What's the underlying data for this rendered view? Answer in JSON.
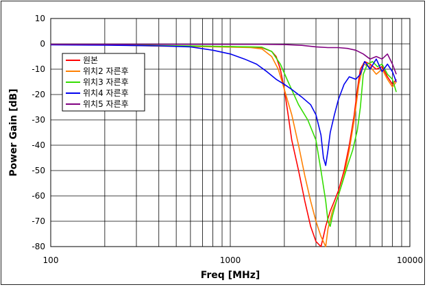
{
  "chart_data": {
    "type": "line",
    "title": "",
    "xlabel": "Freq [MHz]",
    "ylabel": "Power Gain [dB]",
    "xscale": "log",
    "xlim": [
      100,
      10000
    ],
    "ylim": [
      -80,
      10
    ],
    "x_ticks": [
      100,
      1000,
      10000
    ],
    "x_tick_labels": [
      "100",
      "1000",
      "10000"
    ],
    "y_ticks": [
      10,
      0,
      -10,
      -20,
      -30,
      -40,
      -50,
      -60,
      -70,
      -80
    ],
    "y_tick_labels": [
      "10",
      "0",
      "-10",
      "-20",
      "-30",
      "-40",
      "-50",
      "-60",
      "-70",
      "-80"
    ],
    "grid": true,
    "legend_position": "upper-left",
    "series": [
      {
        "name": "원본",
        "color": "#ff0000",
        "points": [
          [
            100,
            -0.3
          ],
          [
            200,
            -0.4
          ],
          [
            400,
            -0.8
          ],
          [
            700,
            -1.0
          ],
          [
            1000,
            -1.1
          ],
          [
            1300,
            -1.3
          ],
          [
            1500,
            -1.5
          ],
          [
            1700,
            -3
          ],
          [
            1800,
            -5
          ],
          [
            1900,
            -10
          ],
          [
            2000,
            -18
          ],
          [
            2100,
            -28
          ],
          [
            2200,
            -38
          ],
          [
            2400,
            -50
          ],
          [
            2600,
            -62
          ],
          [
            2800,
            -72
          ],
          [
            3000,
            -78
          ],
          [
            3200,
            -80
          ],
          [
            3300,
            -76
          ],
          [
            3400,
            -72
          ],
          [
            3600,
            -66
          ],
          [
            3800,
            -62
          ],
          [
            4000,
            -58
          ],
          [
            4300,
            -50
          ],
          [
            4600,
            -40
          ],
          [
            4900,
            -28
          ],
          [
            5100,
            -18
          ],
          [
            5300,
            -10
          ],
          [
            5600,
            -7
          ],
          [
            6000,
            -8
          ],
          [
            6500,
            -10
          ],
          [
            7000,
            -9
          ],
          [
            7500,
            -13
          ],
          [
            8000,
            -16
          ],
          [
            8400,
            -14
          ]
        ]
      },
      {
        "name": "위치2 자른후",
        "color": "#ff7f00",
        "points": [
          [
            100,
            -0.3
          ],
          [
            200,
            -0.4
          ],
          [
            400,
            -0.9
          ],
          [
            700,
            -1.1
          ],
          [
            1000,
            -1.3
          ],
          [
            1300,
            -1.5
          ],
          [
            1500,
            -2
          ],
          [
            1700,
            -5
          ],
          [
            1850,
            -10
          ],
          [
            2000,
            -18
          ],
          [
            2200,
            -28
          ],
          [
            2400,
            -40
          ],
          [
            2600,
            -52
          ],
          [
            2800,
            -62
          ],
          [
            3000,
            -70
          ],
          [
            3200,
            -76
          ],
          [
            3400,
            -80
          ],
          [
            3500,
            -73
          ],
          [
            3700,
            -66
          ],
          [
            4000,
            -60
          ],
          [
            4300,
            -52
          ],
          [
            4600,
            -42
          ],
          [
            4900,
            -30
          ],
          [
            5200,
            -16
          ],
          [
            5500,
            -8
          ],
          [
            6000,
            -9
          ],
          [
            6500,
            -12
          ],
          [
            7000,
            -10
          ],
          [
            7500,
            -14
          ],
          [
            8000,
            -17
          ],
          [
            8400,
            -15
          ]
        ]
      },
      {
        "name": "위치3 자른후",
        "color": "#33dd00",
        "points": [
          [
            100,
            -0.3
          ],
          [
            200,
            -0.3
          ],
          [
            400,
            -0.7
          ],
          [
            700,
            -0.9
          ],
          [
            1000,
            -1.1
          ],
          [
            1300,
            -1.2
          ],
          [
            1500,
            -1.3
          ],
          [
            1700,
            -3
          ],
          [
            1900,
            -8
          ],
          [
            2100,
            -15
          ],
          [
            2400,
            -24
          ],
          [
            2700,
            -30
          ],
          [
            3000,
            -38
          ],
          [
            3200,
            -50
          ],
          [
            3400,
            -62
          ],
          [
            3500,
            -70
          ],
          [
            3600,
            -72
          ],
          [
            3700,
            -68
          ],
          [
            3900,
            -62
          ],
          [
            4200,
            -55
          ],
          [
            4500,
            -48
          ],
          [
            4800,
            -42
          ],
          [
            5100,
            -34
          ],
          [
            5300,
            -25
          ],
          [
            5500,
            -12
          ],
          [
            5800,
            -8
          ],
          [
            6200,
            -7
          ],
          [
            6600,
            -9
          ],
          [
            7000,
            -8
          ],
          [
            7500,
            -12
          ],
          [
            8000,
            -14
          ],
          [
            8400,
            -19
          ]
        ]
      },
      {
        "name": "위치4 자른후",
        "color": "#0000ee",
        "points": [
          [
            100,
            -0.4
          ],
          [
            200,
            -0.5
          ],
          [
            400,
            -0.8
          ],
          [
            600,
            -1.2
          ],
          [
            800,
            -2.5
          ],
          [
            1000,
            -4
          ],
          [
            1200,
            -6
          ],
          [
            1400,
            -8
          ],
          [
            1600,
            -11
          ],
          [
            1800,
            -14
          ],
          [
            2000,
            -16
          ],
          [
            2200,
            -18
          ],
          [
            2500,
            -21
          ],
          [
            2800,
            -24
          ],
          [
            3000,
            -28
          ],
          [
            3200,
            -36
          ],
          [
            3300,
            -45
          ],
          [
            3400,
            -48
          ],
          [
            3500,
            -42
          ],
          [
            3600,
            -35
          ],
          [
            3800,
            -28
          ],
          [
            4000,
            -22
          ],
          [
            4300,
            -16
          ],
          [
            4600,
            -13
          ],
          [
            5000,
            -14
          ],
          [
            5300,
            -12
          ],
          [
            5600,
            -7
          ],
          [
            6000,
            -10
          ],
          [
            6500,
            -6
          ],
          [
            7000,
            -11
          ],
          [
            7500,
            -8
          ],
          [
            8000,
            -11
          ],
          [
            8400,
            -15
          ]
        ]
      },
      {
        "name": "위치5 자른후",
        "color": "#800080",
        "points": [
          [
            100,
            -0.2
          ],
          [
            200,
            -0.2
          ],
          [
            400,
            -0.2
          ],
          [
            800,
            -0.2
          ],
          [
            1000,
            -0.2
          ],
          [
            1500,
            -0.2
          ],
          [
            2000,
            -0.3
          ],
          [
            2500,
            -0.6
          ],
          [
            3000,
            -1.2
          ],
          [
            3500,
            -1.5
          ],
          [
            4000,
            -1.5
          ],
          [
            4500,
            -1.8
          ],
          [
            5000,
            -2.5
          ],
          [
            5500,
            -4
          ],
          [
            6000,
            -6
          ],
          [
            6500,
            -5
          ],
          [
            7000,
            -6
          ],
          [
            7500,
            -4
          ],
          [
            8000,
            -8
          ],
          [
            8400,
            -12
          ]
        ]
      }
    ]
  }
}
